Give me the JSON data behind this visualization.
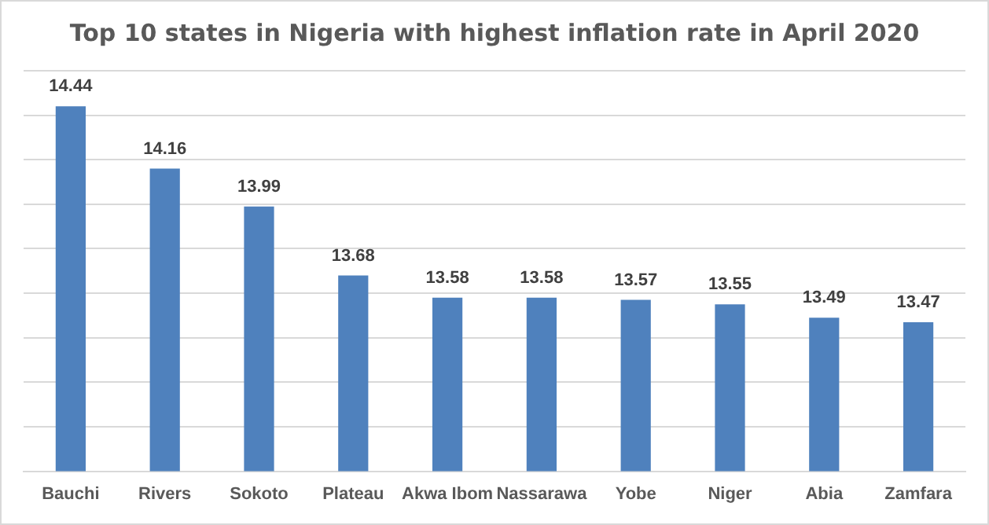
{
  "chart_data": {
    "type": "bar",
    "title": "Top 10 states in Nigeria with highest inflation rate in April 2020",
    "categories": [
      "Bauchi",
      "Rivers",
      "Sokoto",
      "Plateau",
      "Akwa Ibom",
      "Nassarawa",
      "Yobe",
      "Niger",
      "Abia",
      "Zamfara"
    ],
    "values": [
      14.44,
      14.16,
      13.99,
      13.68,
      13.58,
      13.58,
      13.57,
      13.55,
      13.49,
      13.47
    ],
    "color": "#4f81bd",
    "ylim": [
      12.8,
      14.6
    ],
    "yticks": [
      {
        "value": 12.8,
        "label": null
      },
      {
        "value": 13.0,
        "label": null
      },
      {
        "value": 13.2,
        "label": null
      },
      {
        "value": 13.4,
        "label": null
      },
      {
        "value": 13.6,
        "label": null
      },
      {
        "value": 13.8,
        "label": null
      },
      {
        "value": 14.0,
        "label": null
      },
      {
        "value": 14.2,
        "label": null
      },
      {
        "value": 14.4,
        "label": null
      },
      {
        "value": 14.6,
        "label": null
      }
    ],
    "tick_labels": "x",
    "grid": "y",
    "data_labels": true,
    "legend": false
  }
}
